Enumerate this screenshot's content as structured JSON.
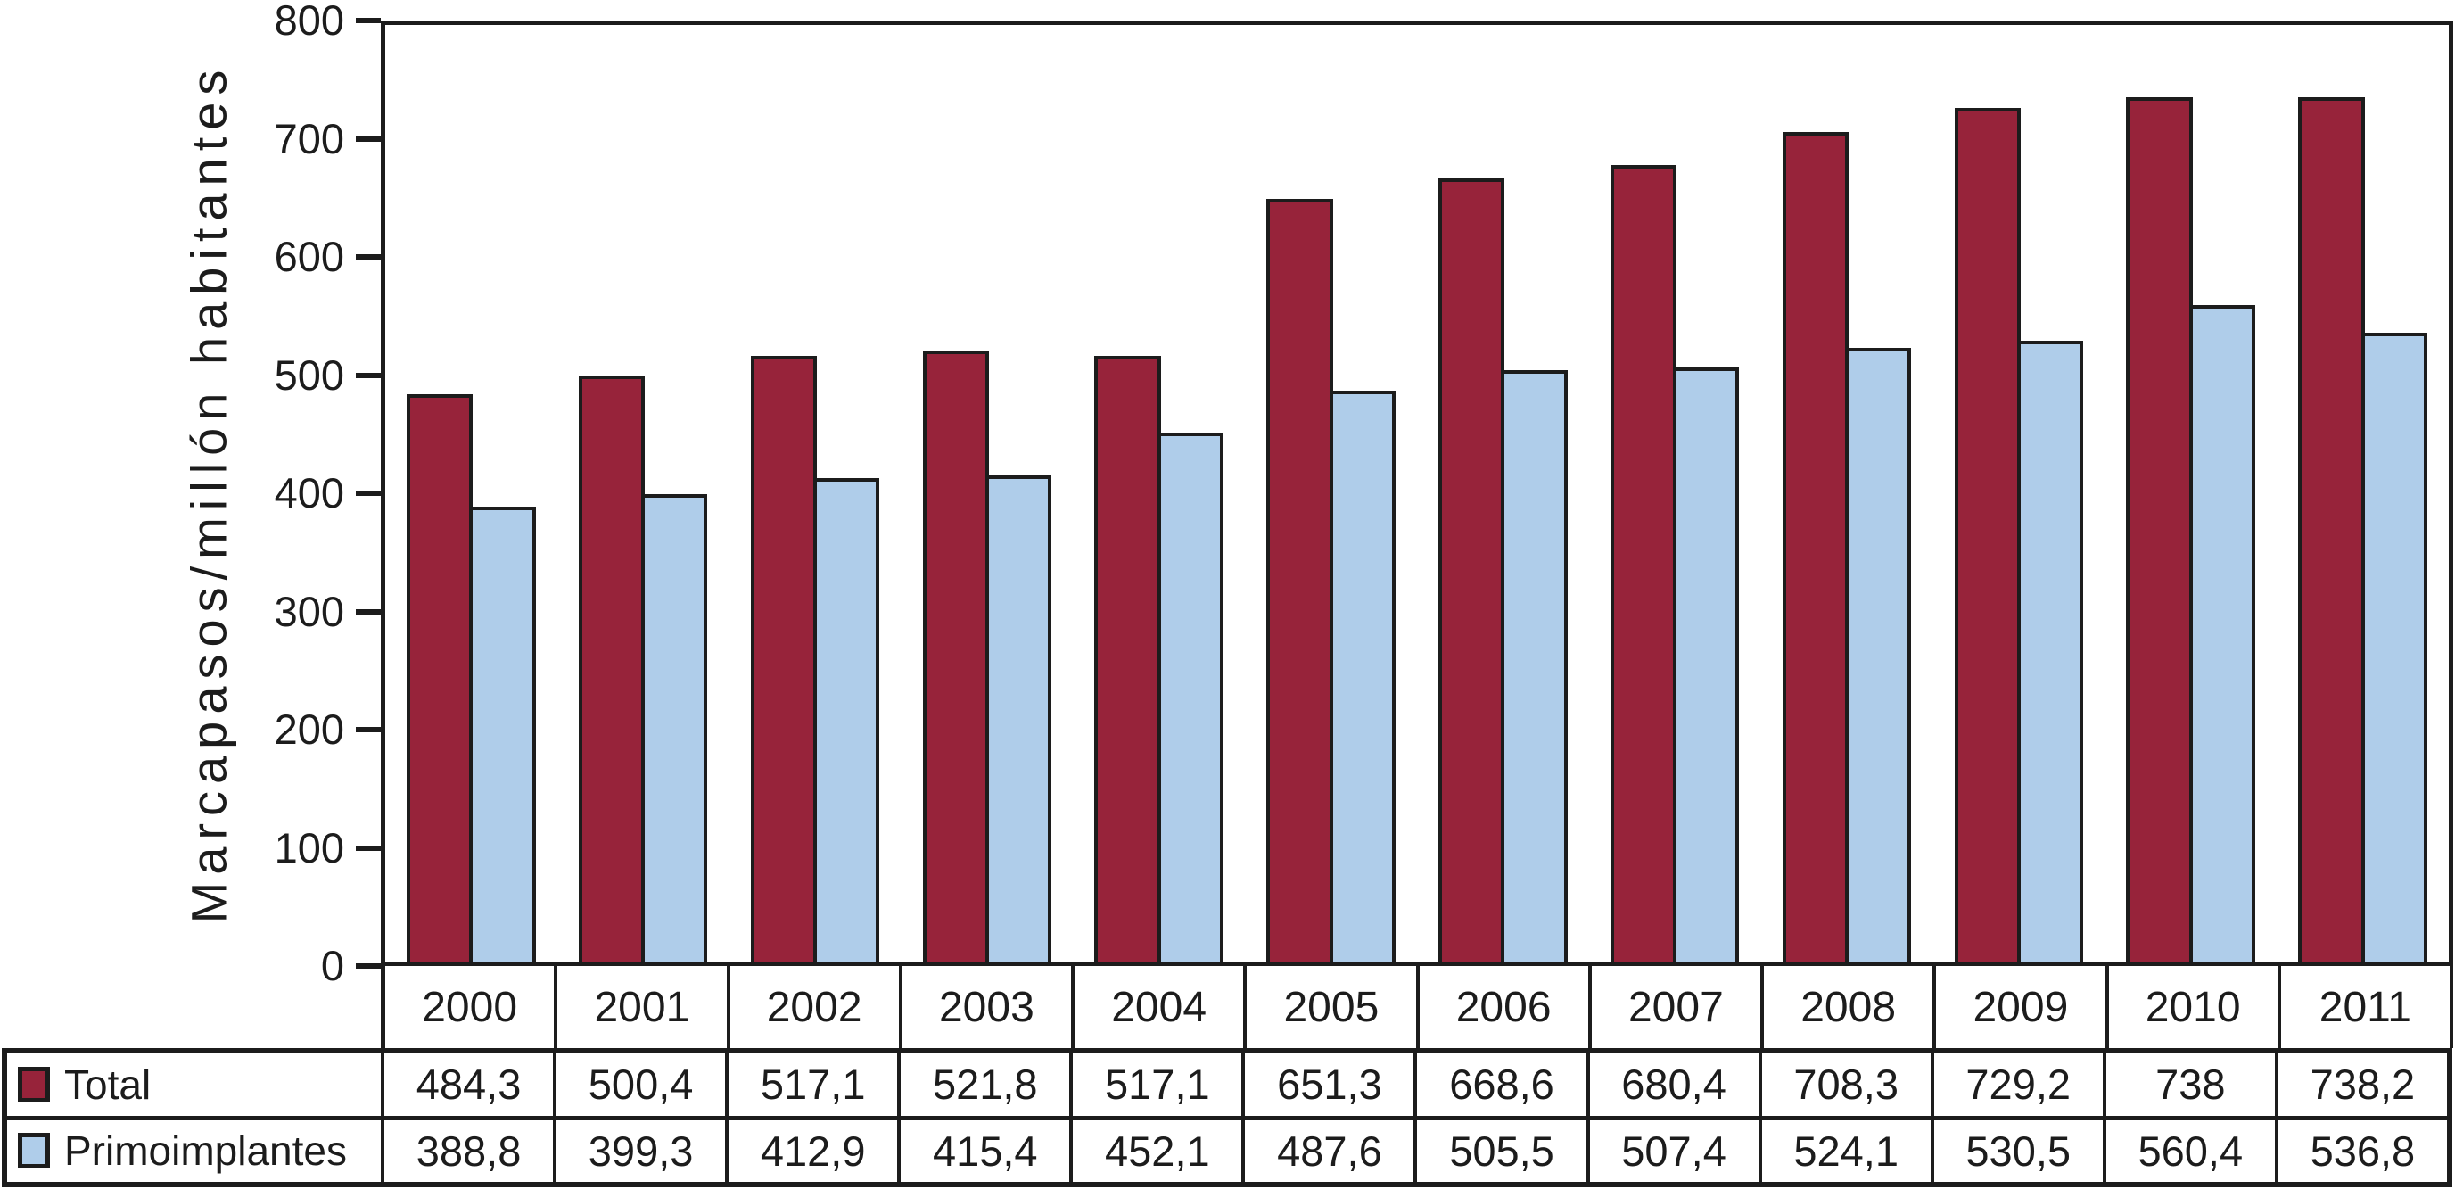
{
  "chart_data": {
    "type": "bar",
    "title": "",
    "xlabel": "",
    "ylabel": "Marcapasos/millón habitantes",
    "ylim": [
      0,
      800
    ],
    "y_ticks": [
      0,
      100,
      200,
      300,
      400,
      500,
      600,
      700,
      800
    ],
    "grid": false,
    "legend_position": "table-left-column",
    "categories": [
      "2000",
      "2001",
      "2002",
      "2003",
      "2004",
      "2005",
      "2006",
      "2007",
      "2008",
      "2009",
      "2010",
      "2011"
    ],
    "series": [
      {
        "name": "Total",
        "color": "#97233A",
        "values": [
          484.3,
          500.4,
          517.1,
          521.8,
          517.1,
          651.3,
          668.6,
          680.4,
          708.3,
          729.2,
          738,
          738.2
        ],
        "value_labels": [
          "484,3",
          "500,4",
          "517,1",
          "521,8",
          "517,1",
          "651,3",
          "668,6",
          "680,4",
          "708,3",
          "729,2",
          "738",
          "738,2"
        ]
      },
      {
        "name": "Primoimplantes",
        "color": "#AFCDEA",
        "values": [
          388.8,
          399.3,
          412.9,
          415.4,
          452.1,
          487.6,
          505.5,
          507.4,
          524.1,
          530.5,
          560.4,
          536.8
        ],
        "value_labels": [
          "388,8",
          "399,3",
          "412,9",
          "415,4",
          "452,1",
          "487,6",
          "505,5",
          "507,4",
          "524,1",
          "530,5",
          "560,4",
          "536,8"
        ]
      }
    ],
    "colors": {
      "outline": "#1c1c1c",
      "background": "#ffffff"
    }
  }
}
